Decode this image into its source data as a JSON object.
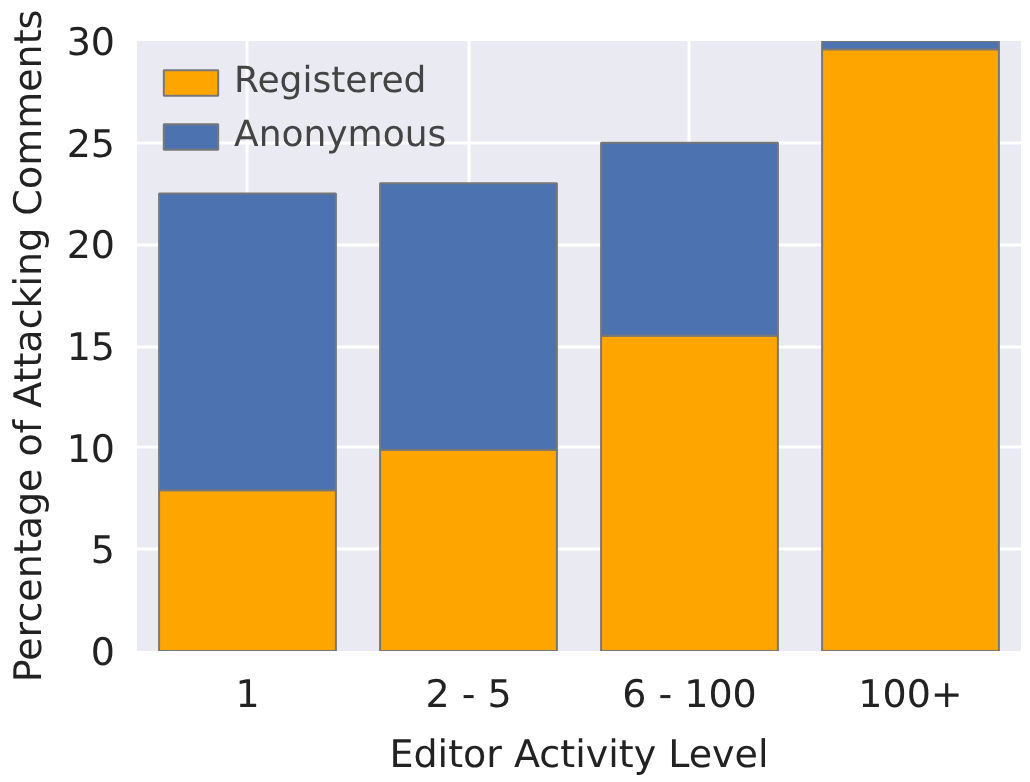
{
  "chart_data": {
    "type": "bar",
    "stacked": true,
    "xlabel": "Editor Activity Level",
    "ylabel": "Percentage of Attacking Comments",
    "categories": [
      "1",
      "2 - 5",
      "6 - 100",
      "100+"
    ],
    "series": [
      {
        "name": "Registered",
        "color": "#ffa500",
        "values": [
          7.9,
          9.9,
          15.5,
          29.6
        ]
      },
      {
        "name": "Anonymous",
        "color": "#4c72b0",
        "values": [
          14.6,
          13.1,
          9.5,
          0.4
        ]
      }
    ],
    "ylim": [
      0,
      30
    ],
    "yticks": [
      0,
      5,
      10,
      15,
      20,
      25,
      30
    ],
    "grid": true,
    "legend": "top left"
  }
}
